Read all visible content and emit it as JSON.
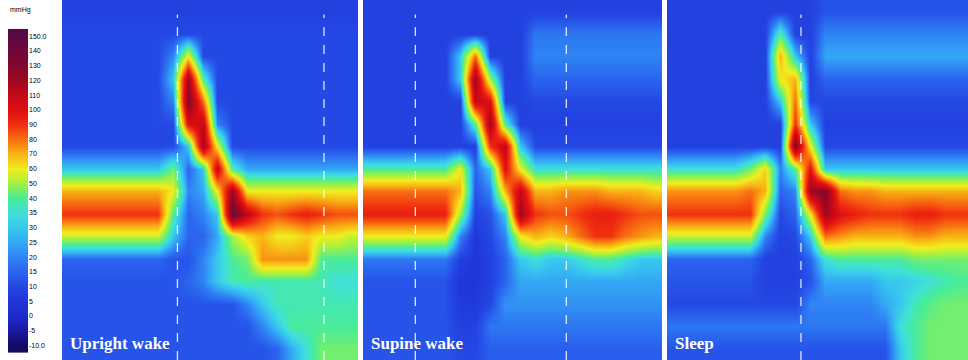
{
  "chart_data": [
    {
      "type": "heatmap",
      "title": "Upright wake",
      "tick_labels": false,
      "xlim": [
        -0.5,
        19.5
      ],
      "ylim": [
        15.5,
        -0.5
      ],
      "event_lines": [
        7.3,
        17.2
      ],
      "cells": [
        [
          8,
          8,
          8,
          8,
          8,
          8,
          8,
          8,
          8,
          8,
          8,
          8,
          8,
          8,
          8,
          8,
          8,
          8,
          8,
          8
        ],
        [
          10,
          10,
          10,
          10,
          10,
          10,
          10,
          10,
          10,
          10,
          10,
          10,
          10,
          10,
          10,
          10,
          10,
          10,
          10,
          10
        ],
        [
          10,
          10,
          10,
          10,
          10,
          10,
          10,
          20,
          60,
          10,
          10,
          10,
          10,
          10,
          10,
          10,
          10,
          10,
          10,
          10
        ],
        [
          10,
          10,
          10,
          10,
          10,
          10,
          10,
          30,
          120,
          40,
          10,
          10,
          10,
          10,
          10,
          10,
          10,
          10,
          10,
          10
        ],
        [
          10,
          10,
          10,
          10,
          10,
          10,
          10,
          20,
          130,
          80,
          10,
          10,
          10,
          10,
          10,
          10,
          10,
          10,
          10,
          10
        ],
        [
          10,
          10,
          10,
          10,
          10,
          10,
          10,
          10,
          100,
          110,
          20,
          10,
          10,
          10,
          10,
          10,
          10,
          10,
          10,
          10
        ],
        [
          10,
          10,
          10,
          10,
          10,
          10,
          10,
          10,
          30,
          120,
          60,
          10,
          10,
          10,
          10,
          10,
          10,
          10,
          10,
          10
        ],
        [
          30,
          30,
          30,
          30,
          30,
          30,
          30,
          45,
          15,
          30,
          110,
          40,
          25,
          25,
          25,
          25,
          25,
          25,
          25,
          25
        ],
        [
          70,
          70,
          70,
          70,
          70,
          70,
          70,
          60,
          20,
          25,
          60,
          120,
          60,
          60,
          60,
          60,
          60,
          60,
          60,
          60
        ],
        [
          90,
          90,
          90,
          90,
          90,
          90,
          90,
          40,
          15,
          20,
          30,
          140,
          110,
          90,
          85,
          90,
          95,
          90,
          85,
          85
        ],
        [
          55,
          55,
          55,
          55,
          55,
          55,
          55,
          30,
          15,
          15,
          25,
          50,
          65,
          70,
          60,
          60,
          65,
          60,
          60,
          55
        ],
        [
          15,
          15,
          15,
          15,
          15,
          15,
          15,
          12,
          12,
          20,
          30,
          40,
          45,
          75,
          75,
          75,
          75,
          40,
          40,
          40
        ],
        [
          12,
          12,
          12,
          12,
          12,
          12,
          12,
          12,
          15,
          20,
          30,
          38,
          40,
          38,
          38,
          38,
          38,
          38,
          35,
          35
        ],
        [
          12,
          12,
          12,
          12,
          12,
          12,
          12,
          12,
          12,
          12,
          12,
          12,
          20,
          30,
          38,
          38,
          38,
          38,
          38,
          38
        ],
        [
          12,
          12,
          12,
          12,
          12,
          12,
          12,
          12,
          12,
          12,
          12,
          12,
          12,
          20,
          30,
          40,
          40,
          40,
          40,
          40
        ],
        [
          12,
          12,
          12,
          12,
          12,
          12,
          12,
          12,
          12,
          12,
          12,
          12,
          12,
          12,
          15,
          25,
          35,
          45,
          45,
          45
        ]
      ]
    },
    {
      "type": "heatmap",
      "title": "Supine wake",
      "tick_labels": false,
      "xlim": [
        -0.5,
        19.5
      ],
      "ylim": [
        15.5,
        -0.5
      ],
      "event_lines": [
        3.0,
        13.1
      ],
      "cells": [
        [
          8,
          8,
          8,
          8,
          8,
          8,
          8,
          8,
          8,
          8,
          8,
          8,
          8,
          8,
          8,
          8,
          8,
          8,
          8,
          8
        ],
        [
          8,
          8,
          8,
          8,
          8,
          8,
          8,
          8,
          8,
          8,
          8,
          18,
          18,
          18,
          18,
          18,
          18,
          18,
          18,
          18
        ],
        [
          8,
          8,
          8,
          8,
          8,
          8,
          30,
          80,
          8,
          8,
          8,
          20,
          20,
          20,
          20,
          20,
          20,
          20,
          20,
          20
        ],
        [
          8,
          8,
          8,
          8,
          8,
          8,
          30,
          120,
          50,
          8,
          8,
          15,
          15,
          15,
          15,
          15,
          15,
          15,
          15,
          15
        ],
        [
          8,
          8,
          8,
          8,
          8,
          8,
          8,
          110,
          100,
          8,
          8,
          10,
          10,
          10,
          10,
          10,
          10,
          10,
          10,
          10
        ],
        [
          8,
          8,
          8,
          8,
          8,
          8,
          8,
          40,
          120,
          40,
          8,
          8,
          8,
          8,
          8,
          8,
          8,
          8,
          8,
          8
        ],
        [
          8,
          8,
          8,
          8,
          8,
          8,
          8,
          8,
          90,
          110,
          30,
          10,
          10,
          10,
          10,
          10,
          10,
          10,
          10,
          10
        ],
        [
          40,
          40,
          40,
          40,
          40,
          40,
          60,
          15,
          30,
          100,
          60,
          35,
          35,
          35,
          35,
          35,
          35,
          35,
          35,
          35
        ],
        [
          80,
          80,
          80,
          80,
          80,
          80,
          70,
          12,
          20,
          70,
          110,
          70,
          70,
          75,
          75,
          75,
          70,
          70,
          70,
          65
        ],
        [
          95,
          95,
          95,
          95,
          95,
          95,
          50,
          8,
          12,
          30,
          120,
          90,
          85,
          85,
          90,
          95,
          95,
          90,
          85,
          85
        ],
        [
          60,
          60,
          60,
          60,
          60,
          60,
          20,
          5,
          10,
          20,
          60,
          70,
          65,
          70,
          80,
          90,
          90,
          80,
          75,
          70
        ],
        [
          18,
          18,
          18,
          18,
          18,
          18,
          8,
          5,
          8,
          15,
          30,
          35,
          30,
          30,
          35,
          40,
          40,
          35,
          30,
          30
        ],
        [
          12,
          12,
          12,
          12,
          12,
          12,
          5,
          5,
          8,
          15,
          25,
          25,
          25,
          25,
          25,
          25,
          25,
          25,
          25,
          25
        ],
        [
          12,
          12,
          12,
          12,
          12,
          12,
          6,
          6,
          10,
          22,
          22,
          22,
          22,
          22,
          22,
          22,
          22,
          22,
          22,
          22
        ],
        [
          12,
          12,
          12,
          12,
          12,
          12,
          8,
          8,
          18,
          18,
          18,
          18,
          18,
          18,
          18,
          18,
          18,
          18,
          18,
          18
        ],
        [
          12,
          12,
          12,
          12,
          12,
          12,
          10,
          10,
          14,
          14,
          14,
          14,
          14,
          14,
          14,
          14,
          14,
          14,
          14,
          14
        ]
      ]
    },
    {
      "type": "heatmap",
      "title": "Sleep",
      "tick_labels": false,
      "xlim": [
        -0.5,
        19.5
      ],
      "ylim": [
        15.5,
        -0.5
      ],
      "event_lines": [
        8.4
      ],
      "cells": [
        [
          8,
          8,
          8,
          8,
          8,
          8,
          8,
          8,
          8,
          8,
          12,
          12,
          12,
          12,
          12,
          12,
          12,
          12,
          12,
          12
        ],
        [
          8,
          8,
          8,
          8,
          8,
          8,
          8,
          40,
          8,
          8,
          20,
          20,
          20,
          20,
          20,
          20,
          20,
          20,
          20,
          20
        ],
        [
          8,
          8,
          8,
          8,
          8,
          8,
          8,
          70,
          30,
          8,
          25,
          25,
          25,
          25,
          25,
          25,
          25,
          25,
          25,
          25
        ],
        [
          8,
          8,
          8,
          8,
          8,
          8,
          8,
          60,
          70,
          8,
          15,
          15,
          15,
          15,
          15,
          15,
          15,
          15,
          15,
          15
        ],
        [
          8,
          8,
          8,
          8,
          8,
          8,
          8,
          30,
          80,
          10,
          10,
          10,
          10,
          10,
          10,
          10,
          10,
          10,
          10,
          10
        ],
        [
          8,
          8,
          8,
          8,
          8,
          8,
          8,
          8,
          90,
          30,
          8,
          8,
          8,
          8,
          8,
          8,
          8,
          8,
          8,
          8
        ],
        [
          8,
          8,
          8,
          8,
          8,
          8,
          8,
          8,
          130,
          60,
          10,
          10,
          10,
          10,
          10,
          10,
          10,
          10,
          10,
          10
        ],
        [
          35,
          35,
          35,
          35,
          35,
          45,
          65,
          20,
          40,
          100,
          30,
          30,
          30,
          30,
          30,
          30,
          30,
          30,
          30,
          30
        ],
        [
          75,
          75,
          75,
          75,
          75,
          80,
          70,
          15,
          20,
          120,
          130,
          80,
          75,
          75,
          70,
          70,
          70,
          70,
          70,
          70
        ],
        [
          90,
          90,
          90,
          90,
          90,
          90,
          45,
          10,
          15,
          60,
          120,
          100,
          95,
          90,
          90,
          90,
          95,
          95,
          90,
          90
        ],
        [
          55,
          55,
          55,
          55,
          55,
          55,
          20,
          8,
          10,
          30,
          80,
          75,
          70,
          70,
          70,
          70,
          75,
          75,
          70,
          70
        ],
        [
          15,
          15,
          15,
          15,
          15,
          15,
          8,
          8,
          8,
          15,
          35,
          40,
          40,
          40,
          40,
          40,
          45,
          45,
          45,
          45
        ],
        [
          12,
          12,
          12,
          12,
          12,
          12,
          8,
          8,
          8,
          12,
          25,
          25,
          25,
          25,
          30,
          30,
          32,
          35,
          38,
          40
        ],
        [
          10,
          10,
          10,
          10,
          10,
          10,
          10,
          10,
          10,
          20,
          20,
          20,
          20,
          20,
          25,
          30,
          38,
          42,
          45,
          45
        ],
        [
          18,
          18,
          18,
          18,
          18,
          18,
          18,
          18,
          18,
          18,
          18,
          18,
          18,
          18,
          18,
          35,
          40,
          45,
          45,
          45
        ],
        [
          12,
          12,
          12,
          12,
          12,
          12,
          12,
          12,
          12,
          12,
          12,
          12,
          12,
          12,
          12,
          30,
          40,
          45,
          45,
          45
        ]
      ]
    }
  ],
  "colorbar": {
    "title": "mmHg",
    "range": [
      -10,
      150
    ],
    "ticks": [
      {
        "value": -10,
        "label": "-10.0"
      },
      -5,
      0,
      5,
      10,
      15,
      20,
      25,
      30,
      35,
      40,
      50,
      60,
      70,
      80,
      90,
      100,
      110,
      120,
      130,
      140,
      {
        "value": 150,
        "label": "150.0"
      }
    ],
    "colors": [
      "#140a60",
      "#1a1aa0",
      "#1e2ac8",
      "#2036d8",
      "#2448e4",
      "#2a64ee",
      "#2f84f4",
      "#33a8f4",
      "#38c8ee",
      "#40e0d8",
      "#48ec9a",
      "#9ef044",
      "#f0ee1e",
      "#f8b414",
      "#f87010",
      "#f03010",
      "#e01010",
      "#c40818",
      "#a00820",
      "#84082c",
      "#700838",
      "#5a0844"
    ]
  }
}
